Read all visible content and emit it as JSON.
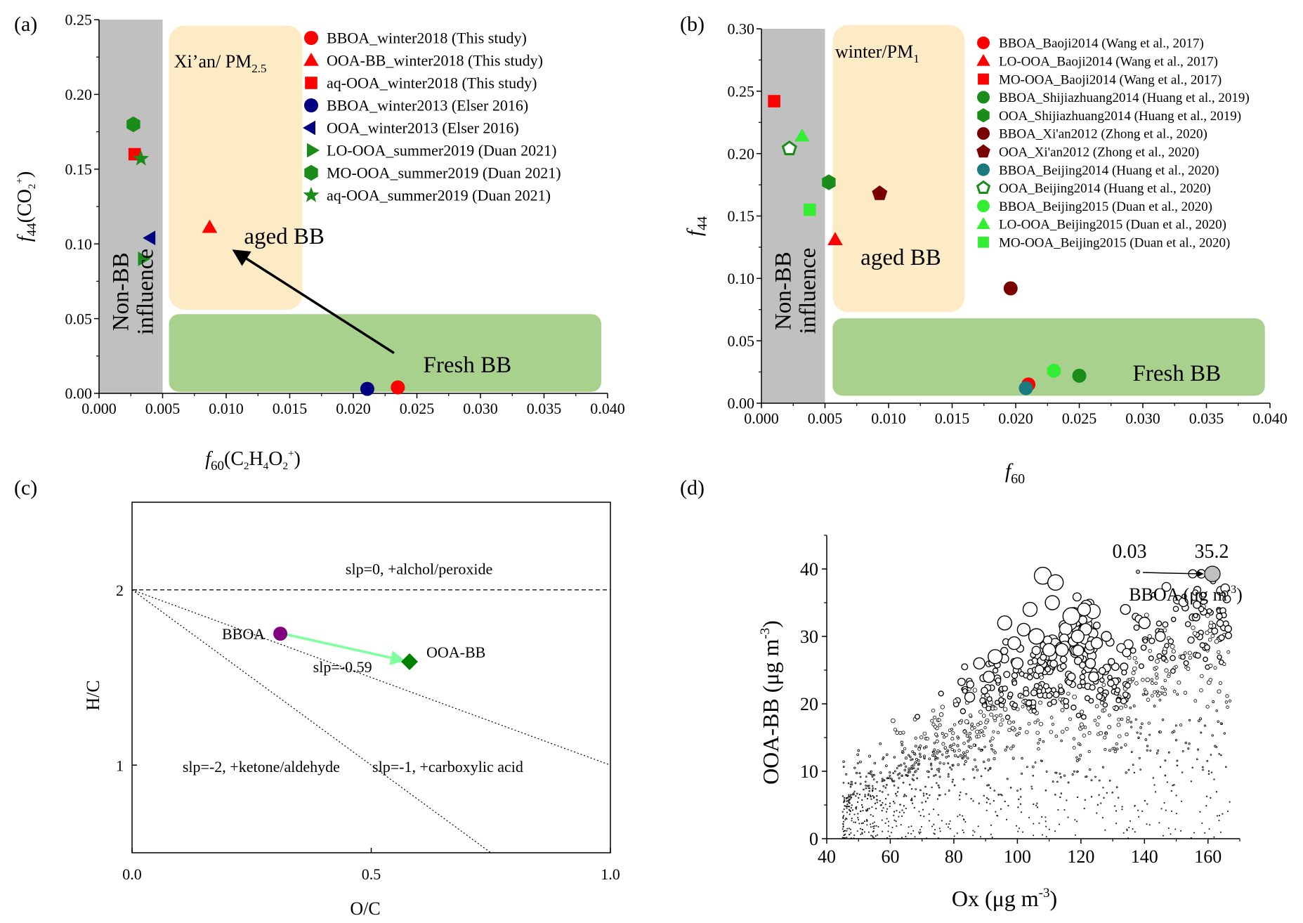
{
  "colors": {
    "red": "#ff0000",
    "green": "#1a8c1a",
    "navy": "#000080",
    "maroon": "#7a0000",
    "teal": "#1a7a80",
    "lime": "#33ee33",
    "gray_band": "#c0c0c0",
    "yellow_band": "#fcebc5",
    "green_band": "#a8d18d",
    "arrow_c": "#80ff9f",
    "purple": "#800080",
    "dark_green": "#008000"
  },
  "chart_data": [
    {
      "id": "a",
      "type": "scatter",
      "panel_label": "(a)",
      "xlabel": {
        "main": "f",
        "sub": "60",
        "rest": "(C",
        "s1": "2",
        "mid": "H",
        "s2": "4",
        "end": "O",
        "s3": "2",
        "sup": "+",
        "close": ")"
      },
      "ylabel": {
        "main": "f",
        "sub": "44",
        "rest": "(CO",
        "s1": "2",
        "sup": "+",
        "close": ")"
      },
      "xlim": [
        0,
        0.04
      ],
      "ylim": [
        0,
        0.25
      ],
      "xticks": [
        "0.000",
        "0.005",
        "0.010",
        "0.015",
        "0.020",
        "0.025",
        "0.030",
        "0.035",
        "0.040"
      ],
      "yticks": [
        "0.00",
        "0.05",
        "0.10",
        "0.15",
        "0.20",
        "0.25"
      ],
      "region_labels": {
        "nonbb": "Non-BB",
        "influence": "influence",
        "site": "Xi’an/ PM",
        "site_sub": "2.5",
        "aged": "aged BB",
        "fresh": "Fresh BB"
      },
      "regions": {
        "gray": [
          0,
          0.005,
          0,
          0.25
        ],
        "yellow": [
          0.0055,
          0.016,
          0.056,
          0.246
        ],
        "green": [
          0.0055,
          0.0395,
          0.001,
          0.053
        ]
      },
      "arrow": {
        "from": [
          0.0232,
          0.027
        ],
        "to": [
          0.0107,
          0.095
        ]
      },
      "series": [
        {
          "name": "BBOA_winter2018 (This study)",
          "marker": "circle",
          "color": "red",
          "points": [
            [
              0.0235,
              0.004
            ]
          ]
        },
        {
          "name": "OOA-BB_winter2018 (This study)",
          "marker": "triangle-up",
          "color": "red",
          "points": [
            [
              0.0087,
              0.111
            ]
          ]
        },
        {
          "name": "aq-OOA_winter2018 (This study)",
          "marker": "square",
          "color": "red",
          "points": [
            [
              0.0028,
              0.16
            ]
          ]
        },
        {
          "name": "BBOA_winter2013 (Elser 2016)",
          "marker": "circle",
          "color": "navy",
          "points": [
            [
              0.0211,
              0.003
            ]
          ]
        },
        {
          "name": "OOA_winter2013 (Elser 2016)",
          "marker": "triangle-left",
          "color": "navy",
          "points": [
            [
              0.0041,
              0.104
            ]
          ]
        },
        {
          "name": "LO-OOA_summer2019 (Duan 2021)",
          "marker": "triangle-right",
          "color": "green",
          "points": [
            [
              0.0034,
              0.09
            ]
          ]
        },
        {
          "name": "MO-OOA_summer2019 (Duan 2021)",
          "marker": "hexagon",
          "color": "green",
          "points": [
            [
              0.0027,
              0.18
            ]
          ]
        },
        {
          "name": "aq-OOA_summer2019 (Duan 2021)",
          "marker": "star",
          "color": "green",
          "points": [
            [
              0.0033,
              0.157
            ]
          ]
        }
      ]
    },
    {
      "id": "b",
      "type": "scatter",
      "panel_label": "(b)",
      "xlabel": {
        "main": "f",
        "sub": "60"
      },
      "ylabel": {
        "main": "f",
        "sub": "44"
      },
      "xlim": [
        0,
        0.04
      ],
      "ylim": [
        0,
        0.3
      ],
      "xticks": [
        "0.000",
        "0.005",
        "0.010",
        "0.015",
        "0.020",
        "0.025",
        "0.030",
        "0.035",
        "0.040"
      ],
      "yticks": [
        "0.00",
        "0.05",
        "0.10",
        "0.15",
        "0.20",
        "0.25",
        "0.30"
      ],
      "region_labels": {
        "nonbb": "Non-BB",
        "influence": "influence",
        "site": "winter/PM",
        "site_sub": "1",
        "aged": "aged BB",
        "fresh": "Fresh BB"
      },
      "regions": {
        "gray": [
          0,
          0.005,
          0,
          0.3
        ],
        "yellow": [
          0.0056,
          0.016,
          0.073,
          0.303
        ],
        "green": [
          0.0056,
          0.0396,
          0.006,
          0.068
        ]
      },
      "series": [
        {
          "name": "BBOA_Baoji2014 (Wang et al., 2017)",
          "marker": "circle",
          "color": "red",
          "points": [
            [
              0.021,
              0.015
            ]
          ]
        },
        {
          "name": "LO-OOA_Baoji2014 (Wang et al., 2017)",
          "marker": "triangle-up",
          "color": "red",
          "points": [
            [
              0.0058,
              0.131
            ]
          ]
        },
        {
          "name": "MO-OOA_Baoji2014 (Wang et al., 2017)",
          "marker": "square",
          "color": "red",
          "points": [
            [
              0.001,
              0.242
            ]
          ]
        },
        {
          "name": "BBOA_Shijiazhuang2014 (Huang et al., 2019)",
          "marker": "circle",
          "color": "green",
          "points": [
            [
              0.025,
              0.022
            ]
          ]
        },
        {
          "name": "OOA_Shijiazhuang2014 (Huang et al., 2019)",
          "marker": "hexagon",
          "color": "green",
          "points": [
            [
              0.0053,
              0.177
            ]
          ]
        },
        {
          "name": "BBOA_Xi'an2012 (Zhong et al., 2020)",
          "marker": "circle",
          "color": "maroon",
          "points": [
            [
              0.0196,
              0.092
            ]
          ]
        },
        {
          "name": "OOA_Xi'an2012 (Zhong et al., 2020)",
          "marker": "pentagon",
          "color": "maroon",
          "points": [
            [
              0.0093,
              0.168
            ]
          ]
        },
        {
          "name": "BBOA_Beijing2014 (Huang et al., 2020)",
          "marker": "circle",
          "color": "teal",
          "points": [
            [
              0.0208,
              0.012
            ]
          ]
        },
        {
          "name": "OOA_Beijing2014 (Huang et al., 2020)",
          "marker": "pentagon-open",
          "color": "green",
          "points": [
            [
              0.0022,
              0.204
            ]
          ]
        },
        {
          "name": "BBOA_Beijing2015 (Duan et al., 2020)",
          "marker": "circle",
          "color": "lime",
          "points": [
            [
              0.023,
              0.026
            ]
          ]
        },
        {
          "name": "LO-OOA_Beijing2015 (Duan et al., 2020)",
          "marker": "triangle-up",
          "color": "lime",
          "points": [
            [
              0.0032,
              0.214
            ]
          ]
        },
        {
          "name": "MO-OOA_Beijing2015 (Duan et al., 2020)",
          "marker": "square",
          "color": "lime",
          "points": [
            [
              0.0038,
              0.155
            ]
          ]
        }
      ]
    },
    {
      "id": "c",
      "type": "scatter",
      "panel_label": "(c)",
      "xlabel": "O/C",
      "ylabel": "H/C",
      "xlim": [
        0,
        1
      ],
      "ylim": [
        0.5,
        2.5
      ],
      "xticks": [
        "0.0",
        "0.5",
        "1.0"
      ],
      "yticks": [
        {
          "v": 1,
          "label": "1"
        },
        {
          "v": 2,
          "label": "2"
        }
      ],
      "lines": [
        {
          "slope": 0,
          "label": "slp=0, +alchol/peroxide",
          "at": [
            0.6,
            2.09
          ]
        },
        {
          "slope": -1,
          "label": "slp=-1, +carboxylic acid",
          "at": [
            0.66,
            0.96
          ]
        },
        {
          "slope": -2,
          "label": "slp=-2, +ketone/aldehyde",
          "at": [
            0.27,
            0.96
          ]
        }
      ],
      "points": [
        {
          "name": "BBOA",
          "x": 0.31,
          "y": 1.75,
          "marker": "circle",
          "color": "purple"
        },
        {
          "name": "OOA-BB",
          "x": 0.58,
          "y": 1.59,
          "marker": "diamond",
          "color": "dark_green"
        }
      ],
      "arrow_label": "slp=-0.59"
    },
    {
      "id": "d",
      "type": "scatter",
      "panel_label": "(d)",
      "xlabel": {
        "main": "Ox (μg m",
        "sup": "-3",
        "close": ")"
      },
      "ylabel": {
        "main": "OOA-BB (μg m",
        "sup": "-3",
        "close": ")"
      },
      "xlim": [
        40,
        170
      ],
      "ylim": [
        0,
        45
      ],
      "xticks": [
        "40",
        "60",
        "80",
        "100",
        "120",
        "140",
        "160"
      ],
      "yticks": [
        "0",
        "10",
        "20",
        "30",
        "40"
      ],
      "size_legend": {
        "min": "0.03",
        "max": "35.2",
        "title": "BBOA (μg m",
        "sup": "-3",
        "close": ")"
      },
      "note": "point cloud: size encodes BBOA concentration"
    }
  ]
}
